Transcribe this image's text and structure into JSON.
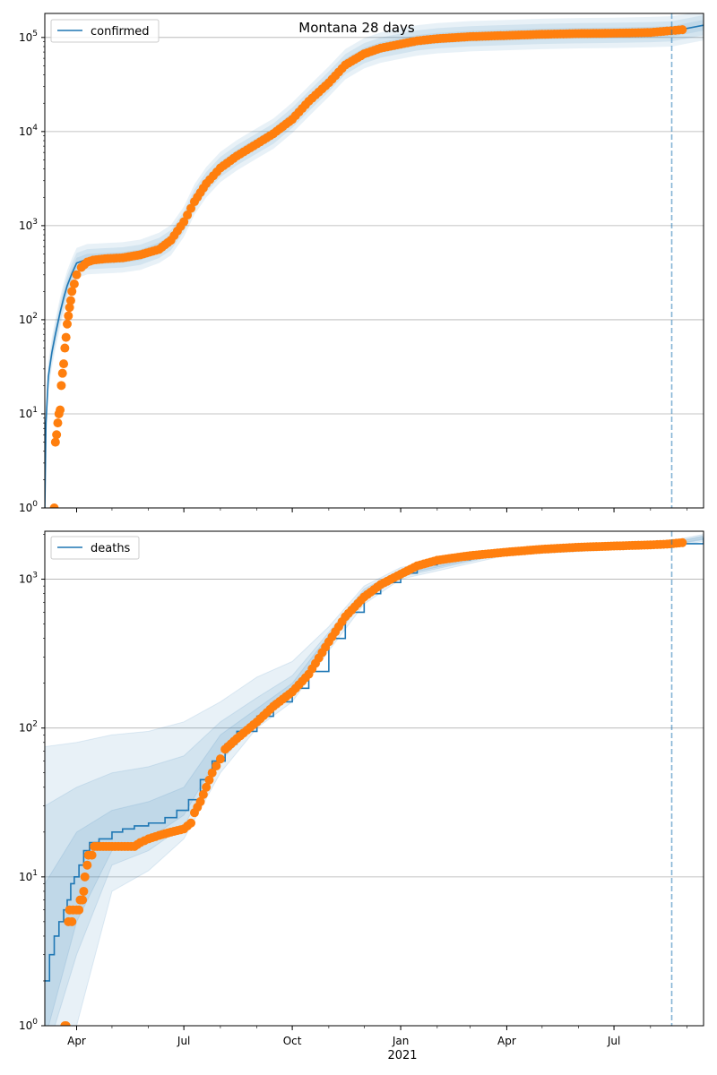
{
  "title": "Montana 28 days",
  "colors": {
    "model_line": "#1f77b4",
    "observed": "#ff7f0e",
    "band": "#1f77b4",
    "grid": "#b0b0b0",
    "vline": "#1f77b4"
  },
  "x_axis": {
    "start": "2020-03-05",
    "end": "2021-09-15",
    "ticks": [
      {
        "date": "2020-04-01",
        "label": "Apr"
      },
      {
        "date": "2020-07-01",
        "label": "Jul"
      },
      {
        "date": "2020-10-01",
        "label": "Oct"
      },
      {
        "date": "2021-01-01",
        "label": "Jan"
      },
      {
        "date": "2021-04-01",
        "label": "Apr"
      },
      {
        "date": "2021-07-01",
        "label": "Jul"
      }
    ],
    "year_label": "2021",
    "forecast_start": "2021-08-19"
  },
  "chart_data": [
    {
      "type": "line",
      "name": "confirmed",
      "legend": "confirmed",
      "scale": "log",
      "ylim": [
        1,
        180000
      ],
      "yticks": [
        {
          "value": 1,
          "base": "10",
          "exp": "0"
        },
        {
          "value": 10,
          "base": "10",
          "exp": "1"
        },
        {
          "value": 100,
          "base": "10",
          "exp": "2"
        },
        {
          "value": 1000,
          "base": "10",
          "exp": "3"
        },
        {
          "value": 10000,
          "base": "10",
          "exp": "4"
        },
        {
          "value": 100000,
          "base": "10",
          "exp": "5"
        }
      ],
      "grid": true,
      "legend_position": "top-left",
      "model": [
        [
          "2020-03-05",
          1
        ],
        [
          "2020-03-06",
          8
        ],
        [
          "2020-03-08",
          25
        ],
        [
          "2020-03-11",
          45
        ],
        [
          "2020-03-14",
          70
        ],
        [
          "2020-03-18",
          120
        ],
        [
          "2020-03-21",
          170
        ],
        [
          "2020-03-24",
          230
        ],
        [
          "2020-03-28",
          310
        ],
        [
          "2020-04-01",
          400
        ],
        [
          "2020-04-10",
          440
        ],
        [
          "2020-04-25",
          450
        ],
        [
          "2020-05-10",
          460
        ],
        [
          "2020-05-25",
          490
        ],
        [
          "2020-06-10",
          580
        ],
        [
          "2020-06-20",
          700
        ],
        [
          "2020-07-01",
          1100
        ],
        [
          "2020-07-10",
          1900
        ],
        [
          "2020-07-20",
          2900
        ],
        [
          "2020-08-01",
          4200
        ],
        [
          "2020-08-15",
          5600
        ],
        [
          "2020-09-01",
          7500
        ],
        [
          "2020-09-15",
          9500
        ],
        [
          "2020-10-01",
          14000
        ],
        [
          "2020-10-15",
          21000
        ],
        [
          "2020-11-01",
          34000
        ],
        [
          "2020-11-15",
          52000
        ],
        [
          "2020-12-01",
          68000
        ],
        [
          "2020-12-15",
          78000
        ],
        [
          "2021-01-01",
          86000
        ],
        [
          "2021-01-15",
          93000
        ],
        [
          "2021-02-01",
          98000
        ],
        [
          "2021-03-01",
          103000
        ],
        [
          "2021-04-01",
          106000
        ],
        [
          "2021-05-01",
          109000
        ],
        [
          "2021-06-01",
          111000
        ],
        [
          "2021-07-01",
          112000
        ],
        [
          "2021-08-01",
          114000
        ],
        [
          "2021-08-19",
          116000
        ],
        [
          "2021-09-15",
          135000
        ]
      ],
      "observed": [
        [
          "2020-03-13",
          1
        ],
        [
          "2020-03-14",
          5
        ],
        [
          "2020-03-15",
          6
        ],
        [
          "2020-03-16",
          8
        ],
        [
          "2020-03-17",
          10
        ],
        [
          "2020-03-18",
          11
        ],
        [
          "2020-03-19",
          20
        ],
        [
          "2020-03-20",
          27
        ],
        [
          "2020-03-21",
          34
        ],
        [
          "2020-03-22",
          50
        ],
        [
          "2020-03-23",
          65
        ],
        [
          "2020-03-24",
          90
        ],
        [
          "2020-03-25",
          110
        ],
        [
          "2020-03-26",
          135
        ],
        [
          "2020-03-27",
          160
        ],
        [
          "2020-03-28",
          200
        ],
        [
          "2020-03-30",
          240
        ],
        [
          "2020-04-01",
          300
        ],
        [
          "2020-04-05",
          360
        ],
        [
          "2020-04-10",
          410
        ],
        [
          "2020-04-15",
          430
        ],
        [
          "2020-04-25",
          445
        ],
        [
          "2020-05-10",
          455
        ],
        [
          "2020-05-25",
          490
        ],
        [
          "2020-06-10",
          560
        ],
        [
          "2020-06-20",
          700
        ],
        [
          "2020-07-01",
          1100
        ],
        [
          "2020-07-10",
          1800
        ],
        [
          "2020-07-20",
          2800
        ],
        [
          "2020-08-01",
          4100
        ],
        [
          "2020-08-15",
          5500
        ],
        [
          "2020-09-01",
          7400
        ],
        [
          "2020-09-15",
          9500
        ],
        [
          "2020-10-01",
          13500
        ],
        [
          "2020-10-15",
          21000
        ],
        [
          "2020-11-01",
          33000
        ],
        [
          "2020-11-15",
          51000
        ],
        [
          "2020-12-01",
          67000
        ],
        [
          "2020-12-15",
          77000
        ],
        [
          "2021-01-01",
          85000
        ],
        [
          "2021-01-15",
          92000
        ],
        [
          "2021-02-01",
          97000
        ],
        [
          "2021-03-01",
          102000
        ],
        [
          "2021-04-01",
          105000
        ],
        [
          "2021-05-01",
          108000
        ],
        [
          "2021-06-01",
          110000
        ],
        [
          "2021-07-01",
          111000
        ],
        [
          "2021-08-01",
          113000
        ],
        [
          "2021-08-15",
          117000
        ],
        [
          "2021-08-22",
          119000
        ],
        [
          "2021-08-28",
          121000
        ]
      ]
    },
    {
      "type": "line",
      "name": "deaths",
      "legend": "deaths",
      "scale": "log",
      "ylim": [
        1,
        2100
      ],
      "yticks": [
        {
          "value": 1,
          "base": "10",
          "exp": "0"
        },
        {
          "value": 10,
          "base": "10",
          "exp": "1"
        },
        {
          "value": 100,
          "base": "10",
          "exp": "2"
        },
        {
          "value": 1000,
          "base": "10",
          "exp": "3"
        }
      ],
      "grid": true,
      "legend_position": "top-left",
      "model": [
        [
          "2020-03-05",
          2
        ],
        [
          "2020-03-08",
          2
        ],
        [
          "2020-03-09",
          3
        ],
        [
          "2020-03-12",
          3
        ],
        [
          "2020-03-13",
          4
        ],
        [
          "2020-03-16",
          4
        ],
        [
          "2020-03-17",
          5
        ],
        [
          "2020-03-20",
          5
        ],
        [
          "2020-03-21",
          6
        ],
        [
          "2020-03-24",
          7
        ],
        [
          "2020-03-27",
          9
        ],
        [
          "2020-03-30",
          10
        ],
        [
          "2020-04-03",
          12
        ],
        [
          "2020-04-07",
          15
        ],
        [
          "2020-04-12",
          17
        ],
        [
          "2020-04-20",
          18
        ],
        [
          "2020-05-01",
          20
        ],
        [
          "2020-05-10",
          21
        ],
        [
          "2020-05-20",
          22
        ],
        [
          "2020-06-01",
          23
        ],
        [
          "2020-06-15",
          25
        ],
        [
          "2020-06-25",
          28
        ],
        [
          "2020-07-05",
          33
        ],
        [
          "2020-07-15",
          45
        ],
        [
          "2020-07-25",
          60
        ],
        [
          "2020-08-05",
          78
        ],
        [
          "2020-08-15",
          95
        ],
        [
          "2020-09-01",
          120
        ],
        [
          "2020-09-15",
          150
        ],
        [
          "2020-10-01",
          185
        ],
        [
          "2020-10-15",
          240
        ],
        [
          "2020-11-01",
          400
        ],
        [
          "2020-11-15",
          600
        ],
        [
          "2020-12-01",
          800
        ],
        [
          "2020-12-15",
          950
        ],
        [
          "2021-01-01",
          1100
        ],
        [
          "2021-01-15",
          1250
        ],
        [
          "2021-02-01",
          1350
        ],
        [
          "2021-03-01",
          1450
        ],
        [
          "2021-04-01",
          1530
        ],
        [
          "2021-05-01",
          1600
        ],
        [
          "2021-06-01",
          1650
        ],
        [
          "2021-07-01",
          1680
        ],
        [
          "2021-08-01",
          1700
        ],
        [
          "2021-08-19",
          1730
        ],
        [
          "2021-09-15",
          1900
        ]
      ],
      "observed": [
        [
          "2020-03-22",
          1
        ],
        [
          "2020-03-23",
          1
        ],
        [
          "2020-03-25",
          5
        ],
        [
          "2020-03-26",
          6
        ],
        [
          "2020-03-28",
          5
        ],
        [
          "2020-03-29",
          6
        ],
        [
          "2020-04-01",
          6
        ],
        [
          "2020-04-03",
          6
        ],
        [
          "2020-04-04",
          7
        ],
        [
          "2020-04-06",
          7
        ],
        [
          "2020-04-07",
          8
        ],
        [
          "2020-04-08",
          10
        ],
        [
          "2020-04-10",
          12
        ],
        [
          "2020-04-11",
          14
        ],
        [
          "2020-04-14",
          14
        ],
        [
          "2020-04-16",
          16
        ],
        [
          "2020-05-01",
          16
        ],
        [
          "2020-05-20",
          16
        ],
        [
          "2020-05-25",
          17
        ],
        [
          "2020-06-01",
          18
        ],
        [
          "2020-06-10",
          19
        ],
        [
          "2020-06-20",
          20
        ],
        [
          "2020-07-01",
          21
        ],
        [
          "2020-07-07",
          23
        ],
        [
          "2020-07-10",
          27
        ],
        [
          "2020-07-15",
          32
        ],
        [
          "2020-07-20",
          40
        ],
        [
          "2020-07-25",
          50
        ],
        [
          "2020-08-01",
          62
        ],
        [
          "2020-08-05",
          72
        ],
        [
          "2020-08-15",
          85
        ],
        [
          "2020-09-01",
          110
        ],
        [
          "2020-09-15",
          140
        ],
        [
          "2020-10-01",
          175
        ],
        [
          "2020-10-15",
          230
        ],
        [
          "2020-11-01",
          380
        ],
        [
          "2020-11-15",
          560
        ],
        [
          "2020-12-01",
          760
        ],
        [
          "2020-12-15",
          920
        ],
        [
          "2021-01-01",
          1080
        ],
        [
          "2021-01-15",
          1230
        ],
        [
          "2021-02-01",
          1340
        ],
        [
          "2021-03-01",
          1440
        ],
        [
          "2021-04-01",
          1520
        ],
        [
          "2021-05-01",
          1590
        ],
        [
          "2021-06-01",
          1640
        ],
        [
          "2021-07-01",
          1670
        ],
        [
          "2021-08-01",
          1700
        ],
        [
          "2021-08-15",
          1720
        ],
        [
          "2021-08-28",
          1760
        ]
      ],
      "bands": [
        {
          "lower": [
            [
              "2020-03-05",
              0.5
            ],
            [
              "2020-04-01",
              1
            ],
            [
              "2020-05-01",
              8
            ],
            [
              "2020-06-01",
              11
            ],
            [
              "2020-07-01",
              18
            ],
            [
              "2020-08-01",
              50
            ],
            [
              "2020-09-01",
              100
            ],
            [
              "2020-10-01",
              150
            ],
            [
              "2020-11-01",
              330
            ],
            [
              "2020-12-01",
              680
            ],
            [
              "2021-01-01",
              1000
            ],
            [
              "2021-04-01",
              1450
            ],
            [
              "2021-08-19",
              1650
            ],
            [
              "2021-09-15",
              1800
            ]
          ],
          "upper": [
            [
              "2020-03-05",
              75
            ],
            [
              "2020-04-01",
              80
            ],
            [
              "2020-05-01",
              90
            ],
            [
              "2020-06-01",
              95
            ],
            [
              "2020-07-01",
              110
            ],
            [
              "2020-08-01",
              150
            ],
            [
              "2020-09-01",
              220
            ],
            [
              "2020-10-01",
              280
            ],
            [
              "2020-11-01",
              480
            ],
            [
              "2020-12-01",
              900
            ],
            [
              "2021-01-01",
              1200
            ],
            [
              "2021-04-01",
              1600
            ],
            [
              "2021-08-19",
              1820
            ],
            [
              "2021-09-15",
              2000
            ]
          ]
        },
        {
          "lower": [
            [
              "2020-03-05",
              0.6
            ],
            [
              "2020-04-01",
              3
            ],
            [
              "2020-05-01",
              12
            ],
            [
              "2020-06-01",
              15
            ],
            [
              "2020-07-01",
              22
            ],
            [
              "2020-08-01",
              60
            ],
            [
              "2020-09-01",
              108
            ],
            [
              "2020-10-01",
              165
            ],
            [
              "2020-11-01",
              360
            ],
            [
              "2020-12-01",
              730
            ],
            [
              "2021-01-01",
              1040
            ],
            [
              "2021-04-01",
              1490
            ],
            [
              "2021-08-19",
              1690
            ],
            [
              "2021-09-15",
              1840
            ]
          ],
          "upper": [
            [
              "2020-03-05",
              30
            ],
            [
              "2020-04-01",
              40
            ],
            [
              "2020-05-01",
              50
            ],
            [
              "2020-06-01",
              55
            ],
            [
              "2020-07-01",
              65
            ],
            [
              "2020-08-01",
              110
            ],
            [
              "2020-09-01",
              160
            ],
            [
              "2020-10-01",
              225
            ],
            [
              "2020-11-01",
              440
            ],
            [
              "2020-12-01",
              860
            ],
            [
              "2021-01-01",
              1160
            ],
            [
              "2021-04-01",
              1570
            ],
            [
              "2021-08-19",
              1780
            ],
            [
              "2021-09-15",
              1960
            ]
          ]
        },
        {
          "lower": [
            [
              "2020-03-05",
              0.8
            ],
            [
              "2020-04-01",
              5
            ],
            [
              "2020-05-01",
              15
            ],
            [
              "2020-06-01",
              18
            ],
            [
              "2020-07-01",
              26
            ],
            [
              "2020-08-01",
              68
            ],
            [
              "2020-09-01",
              114
            ],
            [
              "2020-10-01",
              175
            ],
            [
              "2020-11-01",
              380
            ],
            [
              "2020-12-01",
              770
            ],
            [
              "2021-01-01",
              1070
            ],
            [
              "2021-04-01",
              1510
            ],
            [
              "2021-08-19",
              1710
            ],
            [
              "2021-09-15",
              1860
            ]
          ],
          "upper": [
            [
              "2020-03-05",
              9
            ],
            [
              "2020-04-01",
              20
            ],
            [
              "2020-05-01",
              28
            ],
            [
              "2020-06-01",
              32
            ],
            [
              "2020-07-01",
              40
            ],
            [
              "2020-08-01",
              90
            ],
            [
              "2020-09-01",
              135
            ],
            [
              "2020-10-01",
              200
            ],
            [
              "2020-11-01",
              420
            ],
            [
              "2020-12-01",
              830
            ],
            [
              "2021-01-01",
              1130
            ],
            [
              "2021-04-01",
              1550
            ],
            [
              "2021-08-19",
              1760
            ],
            [
              "2021-09-15",
              1930
            ]
          ]
        }
      ]
    }
  ]
}
